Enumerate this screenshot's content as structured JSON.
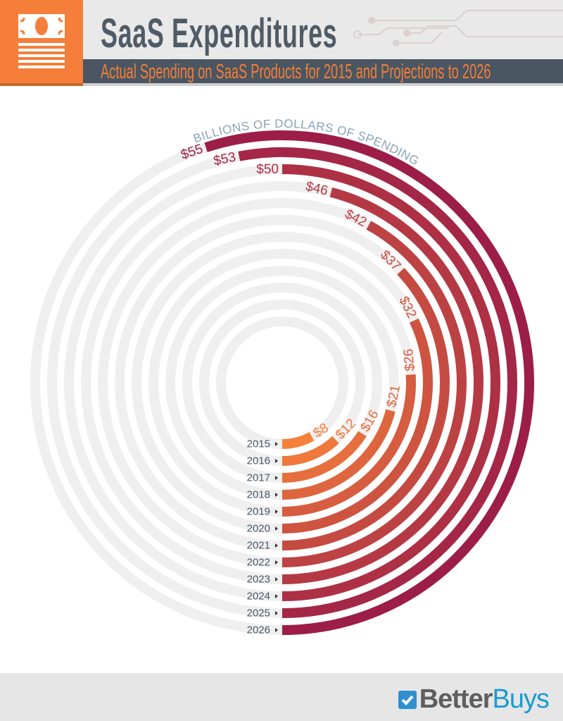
{
  "header": {
    "title": "SaaS Expenditures",
    "subtitle": "Actual Spending on SaaS Products for 2015 and Projections to 2026",
    "icon": "money-document-icon"
  },
  "chart_data": {
    "type": "radial-bar",
    "axis_label": "BILLIONS OF DOLLARS OF SPENDING",
    "full_circle_value": 100,
    "categories": [
      "2015",
      "2016",
      "2017",
      "2018",
      "2019",
      "2020",
      "2021",
      "2022",
      "2023",
      "2024",
      "2025",
      "2026"
    ],
    "values": [
      8,
      12,
      16,
      21,
      26,
      32,
      37,
      42,
      46,
      50,
      53,
      55
    ],
    "data_labels": [
      "$8",
      "$12",
      "$16",
      "$21",
      "$26",
      "$32",
      "$37",
      "$42",
      "$46",
      "$50",
      "$53",
      "$55"
    ],
    "colors": {
      "start": "#f7813a",
      "end": "#9c1e48",
      "track": "#efefef",
      "year_text": "#4a5868",
      "axis_label": "#8aa2ba"
    }
  },
  "footer": {
    "logo_bold": "Better",
    "logo_light": "Buys",
    "logo_icon": "checkmark-icon"
  }
}
